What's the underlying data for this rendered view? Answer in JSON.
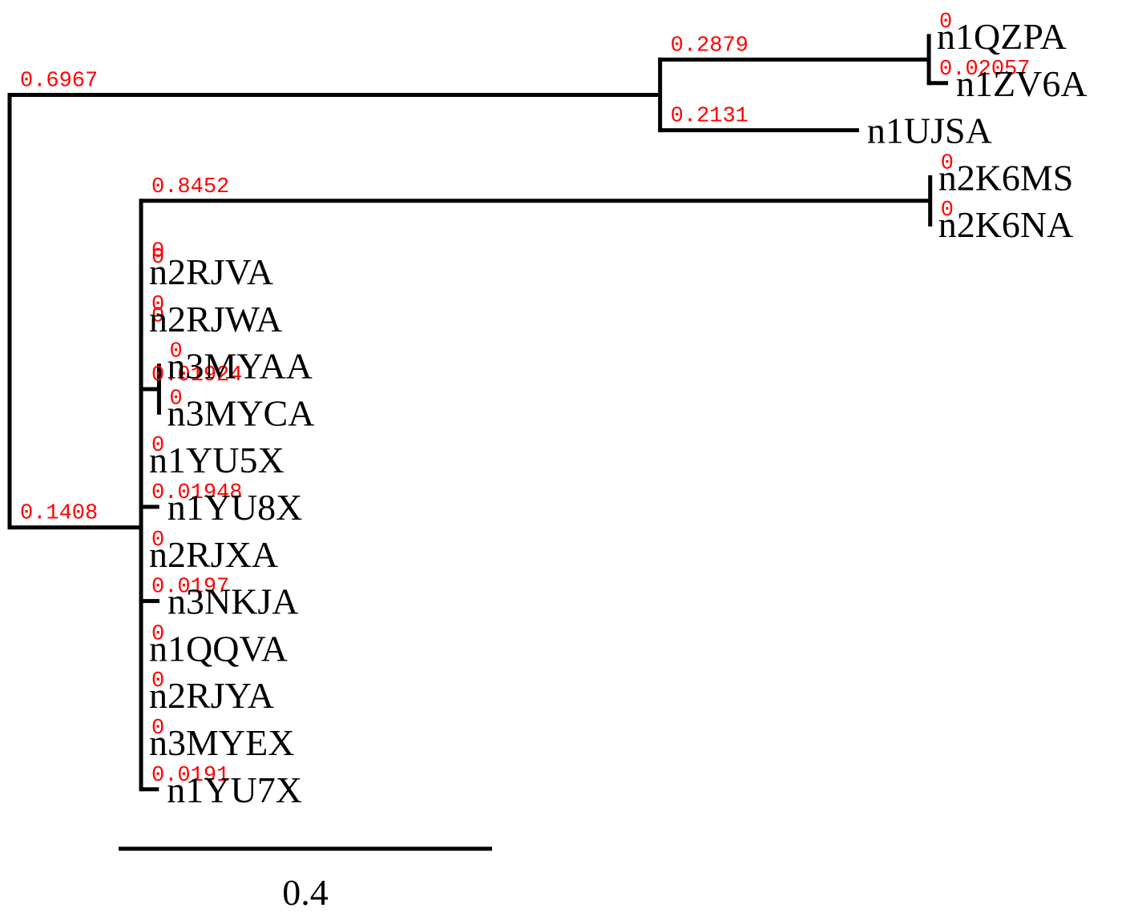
{
  "colors": {
    "branch": "#000000",
    "branch_length_label": "#ff0000"
  },
  "tree": {
    "branch_length": 0,
    "children": [
      {
        "branch_length": 0.6967,
        "children": [
          {
            "branch_length": 0.2879,
            "children": [
              {
                "name": "n1QZPA",
                "branch_length": 0
              },
              {
                "name": "n1ZV6A",
                "branch_length": 0.02057
              }
            ]
          },
          {
            "name": "n1UJSA",
            "branch_length": 0.2131
          }
        ]
      },
      {
        "branch_length": 0.1408,
        "children": [
          {
            "branch_length": 0,
            "children": [
              {
                "branch_length": 0.8452,
                "children": [
                  {
                    "name": "n2K6MS",
                    "branch_length": 0
                  },
                  {
                    "name": "n2K6NA",
                    "branch_length": 0
                  }
                ]
              },
              {
                "branch_length": 0,
                "children": [
                  {
                    "name": "n2RJVA",
                    "branch_length": 0
                  },
                  {
                    "name": "n2RJWA",
                    "branch_length": 0
                  },
                  {
                    "branch_length": 0.01924,
                    "children": [
                      {
                        "name": "n3MYAA",
                        "branch_length": 0
                      },
                      {
                        "name": "n3MYCA",
                        "branch_length": 0
                      }
                    ]
                  }
                ]
              }
            ]
          },
          {
            "name": "n1YU5X",
            "branch_length": 0
          },
          {
            "name": "n1YU8X",
            "branch_length": 0.01948
          },
          {
            "name": "n2RJXA",
            "branch_length": 0
          },
          {
            "name": "n3NKJA",
            "branch_length": 0.0197
          },
          {
            "name": "n1QQVA",
            "branch_length": 0
          },
          {
            "name": "n2RJYA",
            "branch_length": 0
          },
          {
            "name": "n3MYEX",
            "branch_length": 0
          },
          {
            "name": "n1YU7X",
            "branch_length": 0.0191
          }
        ]
      }
    ]
  },
  "scale_bar": {
    "length": 0.4,
    "label": "0.4"
  }
}
